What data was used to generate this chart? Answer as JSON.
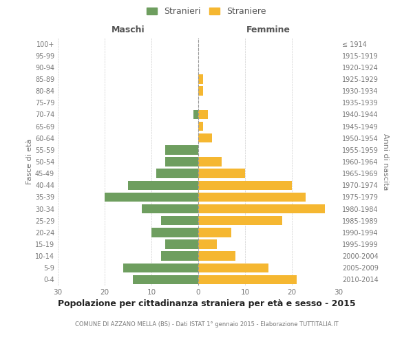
{
  "age_groups": [
    "0-4",
    "5-9",
    "10-14",
    "15-19",
    "20-24",
    "25-29",
    "30-34",
    "35-39",
    "40-44",
    "45-49",
    "50-54",
    "55-59",
    "60-64",
    "65-69",
    "70-74",
    "75-79",
    "80-84",
    "85-89",
    "90-94",
    "95-99",
    "100+"
  ],
  "birth_years": [
    "2010-2014",
    "2005-2009",
    "2000-2004",
    "1995-1999",
    "1990-1994",
    "1985-1989",
    "1980-1984",
    "1975-1979",
    "1970-1974",
    "1965-1969",
    "1960-1964",
    "1955-1959",
    "1950-1954",
    "1945-1949",
    "1940-1944",
    "1935-1939",
    "1930-1934",
    "1925-1929",
    "1920-1924",
    "1915-1919",
    "≤ 1914"
  ],
  "maschi": [
    14,
    16,
    8,
    7,
    10,
    8,
    12,
    20,
    15,
    9,
    7,
    7,
    0,
    0,
    1,
    0,
    0,
    0,
    0,
    0,
    0
  ],
  "femmine": [
    21,
    15,
    8,
    4,
    7,
    18,
    27,
    23,
    20,
    10,
    5,
    0,
    3,
    1,
    2,
    0,
    1,
    1,
    0,
    0,
    0
  ],
  "color_maschi": "#6e9e5f",
  "color_femmine": "#f5b731",
  "title": "Popolazione per cittadinanza straniera per età e sesso - 2015",
  "subtitle": "COMUNE DI AZZANO MELLA (BS) - Dati ISTAT 1° gennaio 2015 - Elaborazione TUTTITALIA.IT",
  "xlabel_left": "Maschi",
  "xlabel_right": "Femmine",
  "ylabel_left": "Fasce di età",
  "ylabel_right": "Anni di nascita",
  "legend_stranieri": "Stranieri",
  "legend_straniere": "Straniere",
  "xlim": 30,
  "background_color": "#ffffff",
  "grid_color": "#cccccc"
}
